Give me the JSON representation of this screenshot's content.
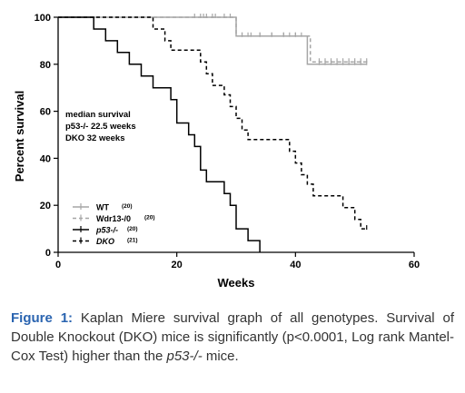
{
  "chart_data": {
    "type": "line",
    "subtype": "kaplan-meier-step",
    "xlabel": "Weeks",
    "ylabel": "Percent survival",
    "xlim": [
      0,
      60
    ],
    "ylim": [
      0,
      100
    ],
    "xticks": [
      "0",
      "20",
      "40",
      "60"
    ],
    "yticks": [
      "0",
      "20",
      "40",
      "60",
      "80",
      "100"
    ],
    "grid": false,
    "legend_position": "bottom-left",
    "annotation": [
      "median survival",
      "p53-/- 22.5 weeks",
      "DKO 32 weeks"
    ],
    "series": [
      {
        "name": "WT",
        "n_label": "(20)",
        "color": "#a6a6a6",
        "dash": "solid",
        "steps": [
          [
            0,
            100
          ],
          [
            30,
            100
          ],
          [
            30,
            92
          ],
          [
            42,
            92
          ],
          [
            42,
            80
          ],
          [
            52,
            80
          ]
        ],
        "censor_x": [
          24,
          25,
          26.5,
          29,
          31,
          32,
          34,
          36,
          38,
          39,
          40,
          41,
          44,
          45,
          46,
          47,
          48,
          49,
          50,
          51,
          52
        ]
      },
      {
        "name": "Wdr13-/0",
        "n_label": "(20)",
        "color": "#a6a6a6",
        "dash": "dashed",
        "steps": [
          [
            0,
            100
          ],
          [
            30,
            100
          ],
          [
            30,
            92
          ],
          [
            42.5,
            92
          ],
          [
            42.5,
            81
          ],
          [
            52,
            81
          ]
        ],
        "censor_x": [
          23,
          24.5,
          26,
          28,
          31,
          32.5,
          34,
          36,
          38,
          40,
          44,
          45,
          46,
          47,
          48,
          49,
          50,
          51,
          52
        ]
      },
      {
        "name": "p53-/-",
        "n_label": "(20)",
        "color": "#000000",
        "dash": "solid",
        "steps": [
          [
            0,
            100
          ],
          [
            6,
            100
          ],
          [
            6,
            95
          ],
          [
            8,
            95
          ],
          [
            8,
            90
          ],
          [
            10,
            90
          ],
          [
            10,
            85
          ],
          [
            12,
            85
          ],
          [
            12,
            80
          ],
          [
            14,
            80
          ],
          [
            14,
            75
          ],
          [
            16,
            75
          ],
          [
            16,
            70
          ],
          [
            19,
            70
          ],
          [
            19,
            65
          ],
          [
            20,
            65
          ],
          [
            20,
            55
          ],
          [
            22,
            55
          ],
          [
            22,
            50
          ],
          [
            23,
            50
          ],
          [
            23,
            45
          ],
          [
            24,
            45
          ],
          [
            24,
            35
          ],
          [
            25,
            35
          ],
          [
            25,
            30
          ],
          [
            28,
            30
          ],
          [
            28,
            25
          ],
          [
            29,
            25
          ],
          [
            29,
            20
          ],
          [
            30,
            20
          ],
          [
            30,
            10
          ],
          [
            32,
            10
          ],
          [
            32,
            5
          ],
          [
            34,
            5
          ],
          [
            34,
            0
          ]
        ],
        "censor_x": []
      },
      {
        "name": "DKO",
        "n_label": "(21)",
        "color": "#000000",
        "dash": "dashed",
        "steps": [
          [
            0,
            100
          ],
          [
            16,
            100
          ],
          [
            16,
            95
          ],
          [
            18,
            95
          ],
          [
            18,
            90
          ],
          [
            19,
            90
          ],
          [
            19,
            86
          ],
          [
            24,
            86
          ],
          [
            24,
            81
          ],
          [
            25,
            81
          ],
          [
            25,
            76
          ],
          [
            26,
            76
          ],
          [
            26,
            71
          ],
          [
            28,
            71
          ],
          [
            28,
            67
          ],
          [
            29,
            67
          ],
          [
            29,
            62
          ],
          [
            30,
            62
          ],
          [
            30,
            57
          ],
          [
            31,
            57
          ],
          [
            31,
            52
          ],
          [
            32,
            52
          ],
          [
            32,
            48
          ],
          [
            39,
            48
          ],
          [
            39,
            43
          ],
          [
            40,
            43
          ],
          [
            40,
            38
          ],
          [
            41,
            38
          ],
          [
            41,
            33
          ],
          [
            42,
            33
          ],
          [
            42,
            29
          ],
          [
            43,
            29
          ],
          [
            43,
            24
          ],
          [
            48,
            24
          ],
          [
            48,
            19
          ],
          [
            50,
            19
          ],
          [
            50,
            14
          ],
          [
            51,
            14
          ],
          [
            51,
            10
          ],
          [
            52,
            10
          ]
        ],
        "censor_x": [
          52
        ]
      }
    ]
  },
  "caption": {
    "label": "Figure 1:",
    "text": " Kaplan Miere survival graph of all genotypes. Survival of Double Knockout (DKO) mice is significantly (p<0.0001, Log rank Mantel-Cox Test) higher than the ",
    "italic": "p53-/-",
    "tail": " mice."
  }
}
